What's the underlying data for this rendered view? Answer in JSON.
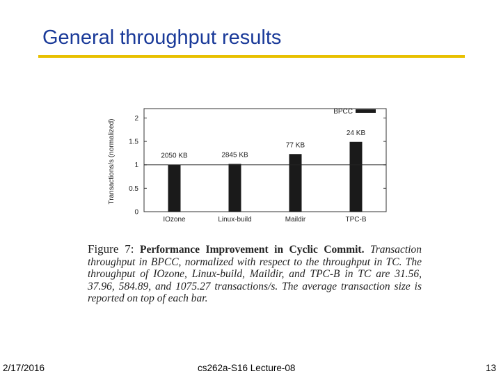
{
  "slide": {
    "title": "General throughput results",
    "footer_date": "2/17/2016",
    "footer_course": "cs262a-S16 Lecture-08",
    "footer_page": "13"
  },
  "caption": {
    "label": "Figure 7:",
    "heading": "Performance Improvement in Cyclic Commit.",
    "body": "Transaction throughput in BPCC, normalized with respect to the throughput in TC. The throughput of IOzone, Linux-build, Maildir, and TPC-B in TC are 31.56, 37.96, 584.89, and 1075.27 transactions/s. The average transaction size is reported on top of each bar."
  },
  "colors": {
    "title": "#1a3a99",
    "rule": "#e8c000",
    "bar": "#1a1a1a"
  },
  "chart_data": {
    "type": "bar",
    "categories": [
      "IOzone",
      "Linux-build",
      "Maildir",
      "TPC-B"
    ],
    "series": [
      {
        "name": "BPCC",
        "values": [
          1.0,
          1.02,
          1.23,
          1.49
        ]
      }
    ],
    "bar_labels": [
      "2050 KB",
      "2845 KB",
      "77 KB",
      "24 KB"
    ],
    "title": "",
    "xlabel": "",
    "ylabel": "Transactions/s (normalized)",
    "ylim": [
      0,
      2.2
    ],
    "yticks": [
      0,
      0.5,
      1,
      1.5,
      2
    ],
    "ytick_labels": [
      "0",
      "0.5",
      "1",
      "1.5",
      "2"
    ],
    "reference_line": 1,
    "grid": false,
    "legend": "top-right"
  }
}
